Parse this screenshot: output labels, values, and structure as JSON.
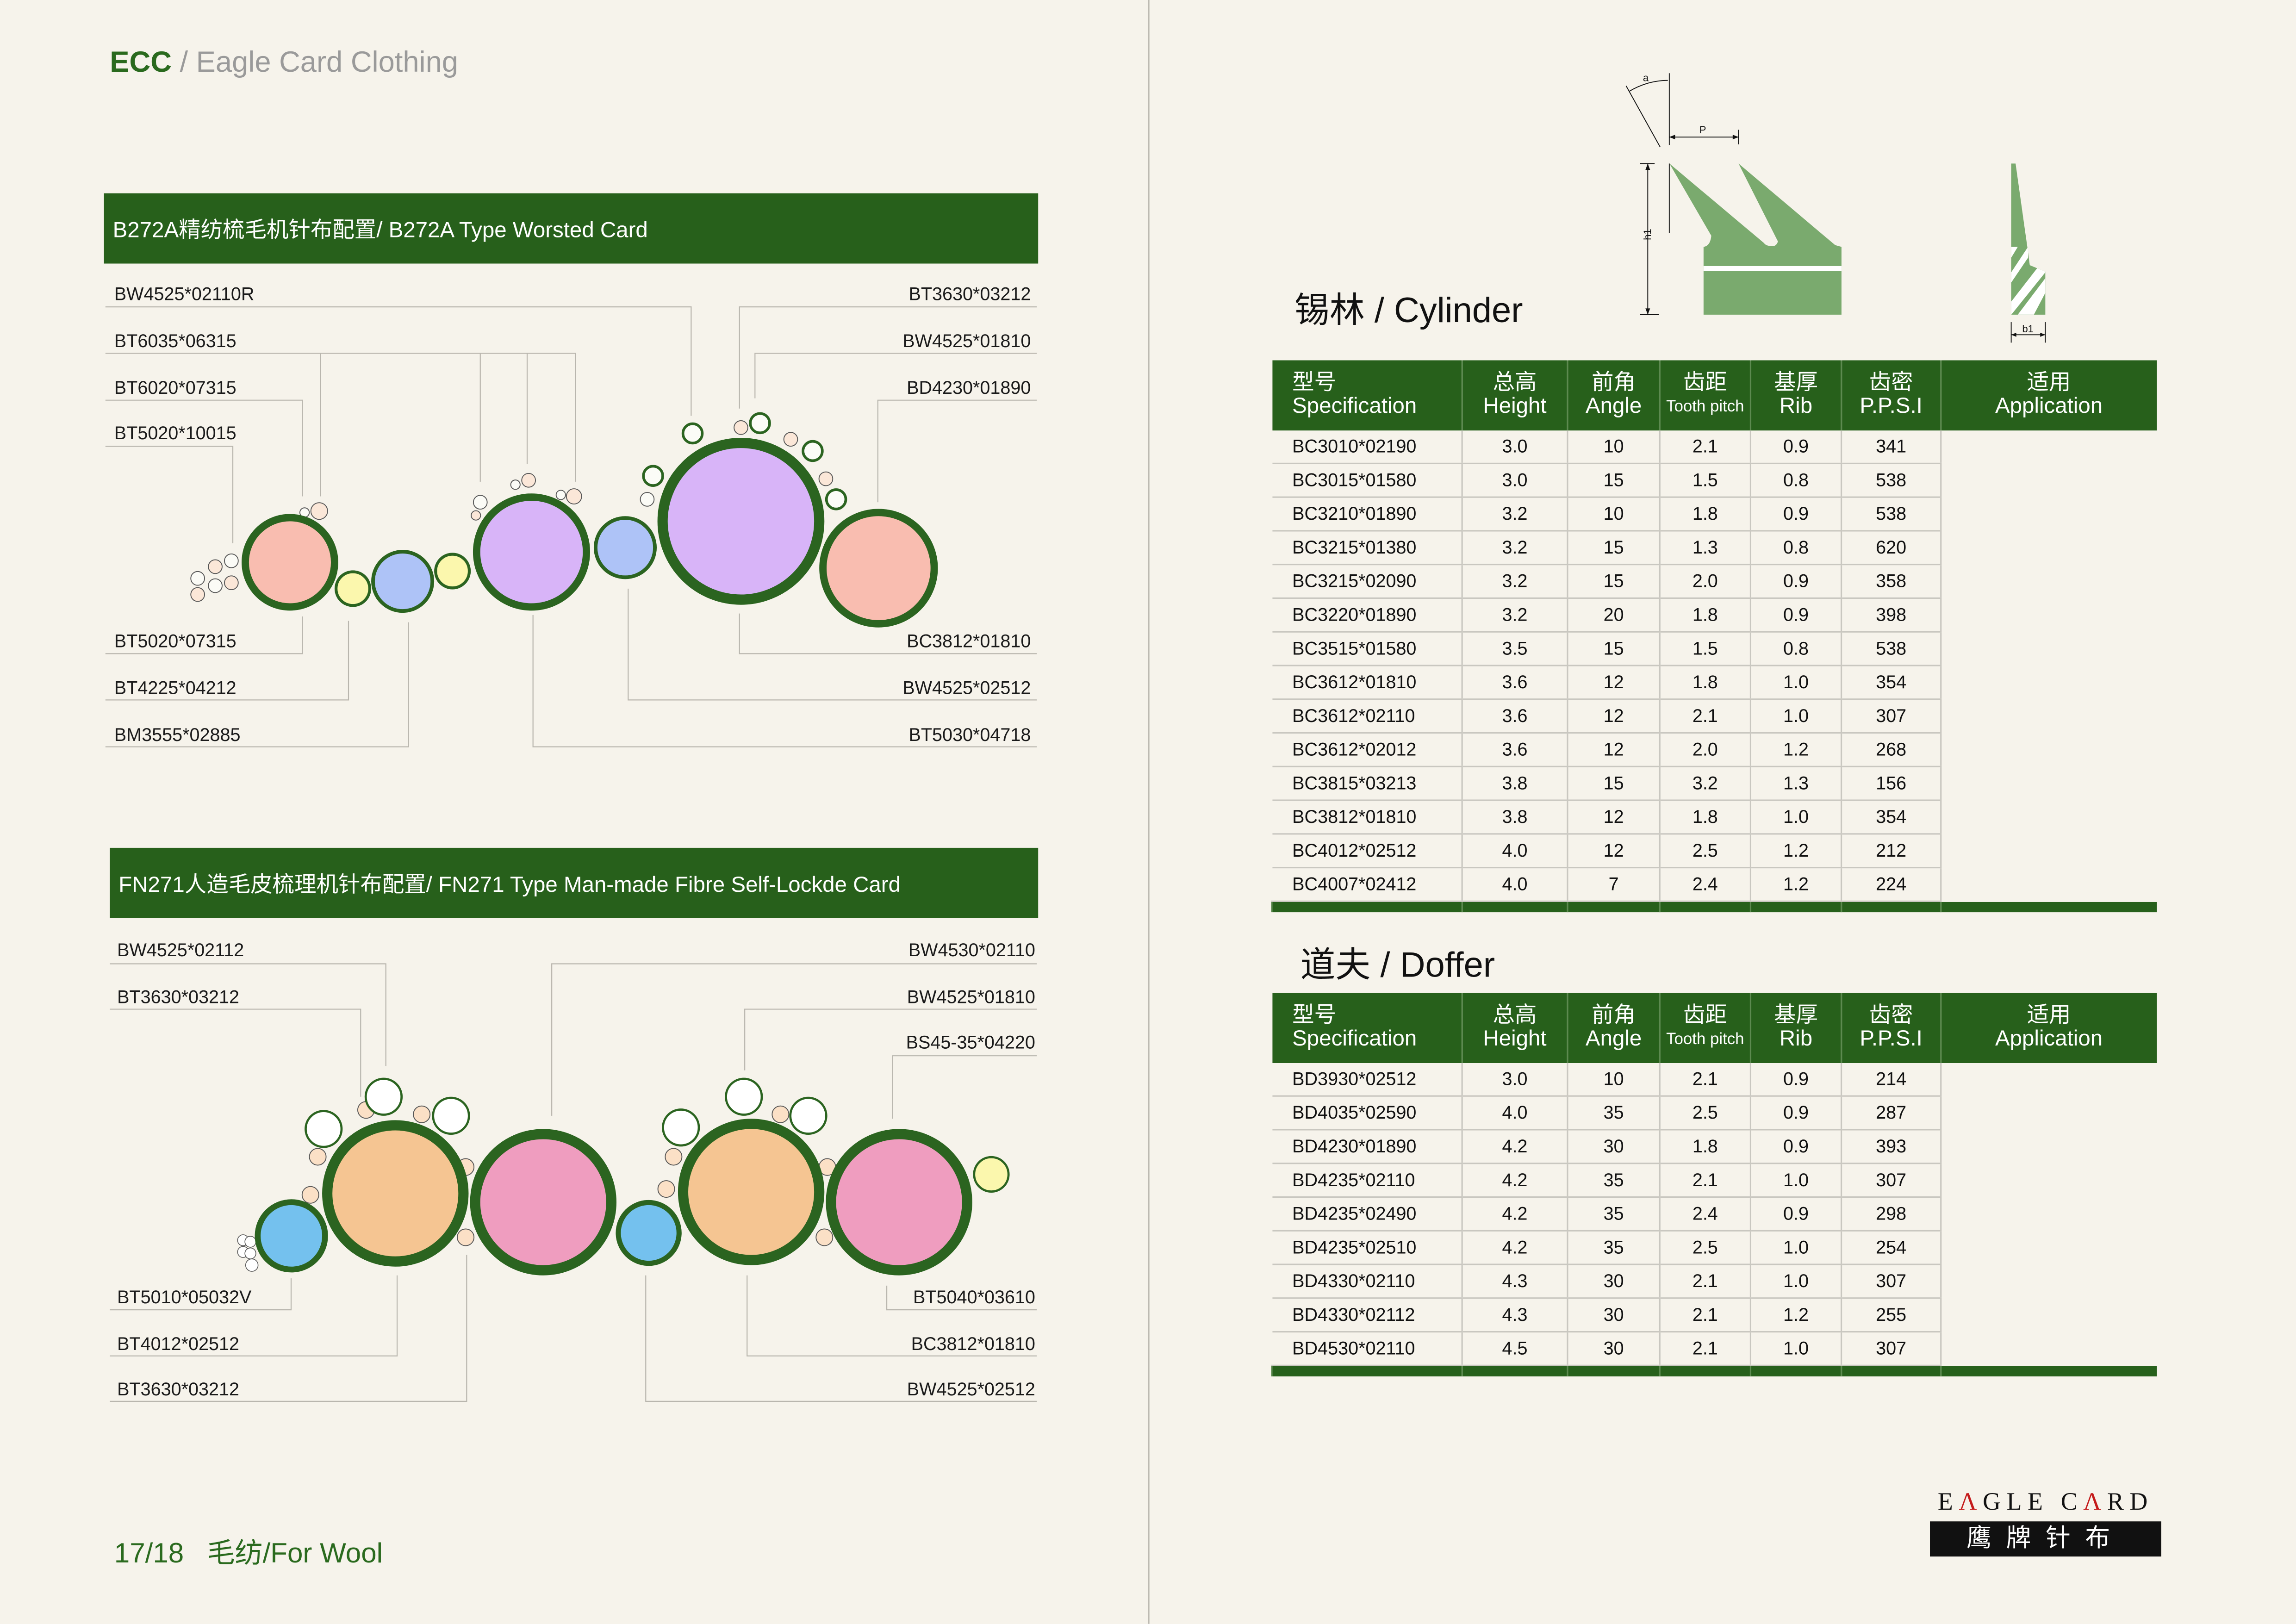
{
  "header": {
    "brand_short": "ECC",
    "brand_sep": " / ",
    "brand_name": "Eagle Card Clothing"
  },
  "colors": {
    "accent_green": "#27601b",
    "pink": "#f9bdb0",
    "purple": "#d8b4f8",
    "blue": "#aec3f7",
    "yellow": "#fbf7ad",
    "orange": "#f5c592",
    "magenta": "#ef9dbf",
    "sky": "#74c1ee"
  },
  "diagram1": {
    "title": "B272A精纺梳毛机针布配置/ B272A Type Worsted Card",
    "left_top": [
      "BW4525*02110R",
      "BT6035*06315",
      "BT6020*07315",
      "BT5020*10015"
    ],
    "right_top": [
      "BT3630*03212",
      "BW4525*01810",
      "BD4230*01890"
    ],
    "left_bottom": [
      "BT5020*07315",
      "BT4225*04212",
      "BM3555*02885"
    ],
    "right_bottom": [
      "BC3812*01810",
      "BW4525*02512",
      "BT5030*04718"
    ]
  },
  "diagram2": {
    "title": "FN271人造毛皮梳理机针布配置/ FN271 Type Man-made Fibre Self-Lockde Card",
    "left_top": [
      "BW4525*02112",
      "BT3630*03212"
    ],
    "right_top": [
      "BW4530*02110",
      "BW4525*01810",
      "BS45-35*04220"
    ],
    "left_bottom": [
      "BT5010*05032V",
      "BT4012*02512",
      "BT3630*03212"
    ],
    "right_bottom": [
      "BT5040*03610",
      "BC3812*01810",
      "BW4525*02512"
    ]
  },
  "tooth_diagram": {
    "labels": {
      "angle": "a",
      "pitch": "P",
      "height": "h1",
      "rib": "b1"
    }
  },
  "columns": [
    {
      "cn": "型号",
      "en": "Specification"
    },
    {
      "cn": "总高",
      "en": "Height"
    },
    {
      "cn": "前角",
      "en": "Angle"
    },
    {
      "cn": "齿距",
      "en": "Tooth pitch"
    },
    {
      "cn": "基厚",
      "en": "Rib"
    },
    {
      "cn": "齿密",
      "en": "P.P.S.I"
    },
    {
      "cn": "适用",
      "en": "Application"
    }
  ],
  "cylinder": {
    "title": "锡林 / Cylinder",
    "rows": [
      [
        "BC3010*02190",
        "3.0",
        "10",
        "2.1",
        "0.9",
        "341"
      ],
      [
        "BC3015*01580",
        "3.0",
        "15",
        "1.5",
        "0.8",
        "538"
      ],
      [
        "BC3210*01890",
        "3.2",
        "10",
        "1.8",
        "0.9",
        "538"
      ],
      [
        "BC3215*01380",
        "3.2",
        "15",
        "1.3",
        "0.8",
        "620"
      ],
      [
        "BC3215*02090",
        "3.2",
        "15",
        "2.0",
        "0.9",
        "358"
      ],
      [
        "BC3220*01890",
        "3.2",
        "20",
        "1.8",
        "0.9",
        "398"
      ],
      [
        "BC3515*01580",
        "3.5",
        "15",
        "1.5",
        "0.8",
        "538"
      ],
      [
        "BC3612*01810",
        "3.6",
        "12",
        "1.8",
        "1.0",
        "354"
      ],
      [
        "BC3612*02110",
        "3.6",
        "12",
        "2.1",
        "1.0",
        "307"
      ],
      [
        "BC3612*02012",
        "3.6",
        "12",
        "2.0",
        "1.2",
        "268"
      ],
      [
        "BC3815*03213",
        "3.8",
        "15",
        "3.2",
        "1.3",
        "156"
      ],
      [
        "BC3812*01810",
        "3.8",
        "12",
        "1.8",
        "1.0",
        "354"
      ],
      [
        "BC4012*02512",
        "4.0",
        "12",
        "2.5",
        "1.2",
        "212"
      ],
      [
        "BC4007*02412",
        "4.0",
        "7",
        "2.4",
        "1.2",
        "224"
      ]
    ]
  },
  "doffer": {
    "title": "道夫 / Doffer",
    "rows": [
      [
        "BD3930*02512",
        "3.0",
        "10",
        "2.1",
        "0.9",
        "214"
      ],
      [
        "BD4035*02590",
        "4.0",
        "35",
        "2.5",
        "0.9",
        "287"
      ],
      [
        "BD4230*01890",
        "4.2",
        "30",
        "1.8",
        "0.9",
        "393"
      ],
      [
        "BD4235*02110",
        "4.2",
        "35",
        "2.1",
        "1.0",
        "307"
      ],
      [
        "BD4235*02490",
        "4.2",
        "35",
        "2.4",
        "0.9",
        "298"
      ],
      [
        "BD4235*02510",
        "4.2",
        "35",
        "2.5",
        "1.0",
        "254"
      ],
      [
        "BD4330*02110",
        "4.3",
        "30",
        "2.1",
        "1.0",
        "307"
      ],
      [
        "BD4330*02112",
        "4.3",
        "30",
        "2.1",
        "1.2",
        "255"
      ],
      [
        "BD4530*02110",
        "4.5",
        "30",
        "2.1",
        "1.0",
        "307"
      ]
    ]
  },
  "footer": {
    "page": "17/18",
    "section": "毛纺/For Wool"
  },
  "logo": {
    "en": "EAGLE CARD",
    "cn": "鹰牌针布"
  }
}
